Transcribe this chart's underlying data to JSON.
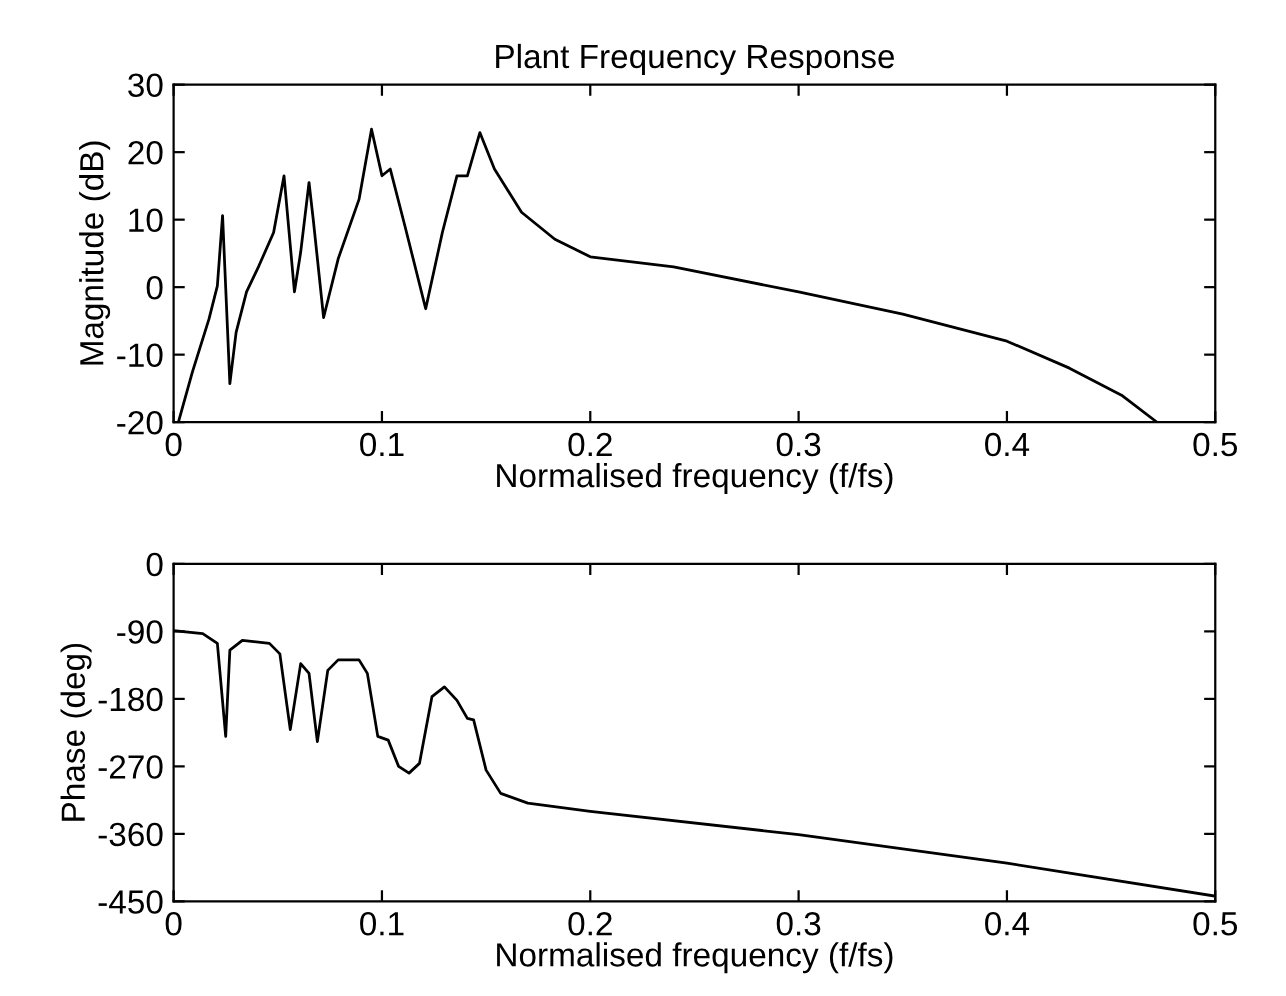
{
  "chart_data": [
    {
      "type": "line",
      "title": "Plant Frequency Response",
      "xlabel": "Normalised frequency (f/fs)",
      "ylabel": "Magnitude (dB)",
      "xlim": [
        0,
        0.5
      ],
      "xticks": [
        0,
        0.1,
        0.2,
        0.3,
        0.4,
        0.5
      ],
      "ylim": [
        -20,
        30
      ],
      "yticks": [
        -20,
        -10,
        0,
        10,
        20,
        30
      ],
      "grid": false,
      "legend": false,
      "series": [
        {
          "color": "#000000",
          "x": [
            0.0023,
            0.009,
            0.017,
            0.021,
            0.0235,
            0.027,
            0.03,
            0.035,
            0.041,
            0.048,
            0.053,
            0.058,
            0.061,
            0.065,
            0.067,
            0.072,
            0.079,
            0.089,
            0.095,
            0.1,
            0.104,
            0.111,
            0.121,
            0.129,
            0.136,
            0.141,
            0.147,
            0.154,
            0.167,
            0.183,
            0.2,
            0.24,
            0.3,
            0.35,
            0.4,
            0.43,
            0.455,
            0.472
          ],
          "values": [
            -20,
            -12.6,
            -4.7,
            0.2,
            10.6,
            -14.3,
            -6.7,
            -0.7,
            3.2,
            8.1,
            16.5,
            -0.7,
            5.2,
            15.5,
            10.1,
            -4.5,
            4.2,
            13,
            23.4,
            16.5,
            17.5,
            9.1,
            -3.2,
            8.1,
            16.5,
            16.5,
            22.9,
            17.5,
            11.1,
            7.1,
            4.5,
            3,
            -0.7,
            -4,
            -8,
            -12,
            -16,
            -20
          ]
        }
      ]
    },
    {
      "type": "line",
      "xlabel": "Normalised frequency (f/fs)",
      "ylabel": "Phase (deg)",
      "xlim": [
        0,
        0.5
      ],
      "xticks": [
        0,
        0.1,
        0.2,
        0.3,
        0.4,
        0.5
      ],
      "ylim": [
        -450,
        0
      ],
      "yticks": [
        -450,
        -360,
        -270,
        -180,
        -90,
        0
      ],
      "grid": false,
      "legend": false,
      "series": [
        {
          "color": "#000000",
          "x": [
            0,
            0.014,
            0.021,
            0.025,
            0.027,
            0.033,
            0.046,
            0.051,
            0.056,
            0.061,
            0.065,
            0.069,
            0.074,
            0.079,
            0.089,
            0.093,
            0.098,
            0.103,
            0.108,
            0.113,
            0.118,
            0.124,
            0.13,
            0.136,
            0.141,
            0.144,
            0.15,
            0.157,
            0.17,
            0.2,
            0.3,
            0.4,
            0.5
          ],
          "values": [
            -89,
            -93,
            -106,
            -230,
            -115,
            -102,
            -106,
            -120,
            -221,
            -133,
            -146,
            -237,
            -142,
            -128,
            -128,
            -146,
            -230,
            -235,
            -270,
            -279,
            -266,
            -177,
            -164,
            -182,
            -206,
            -208,
            -275,
            -306,
            -319,
            -330,
            -361,
            -399,
            -443
          ]
        }
      ]
    }
  ]
}
